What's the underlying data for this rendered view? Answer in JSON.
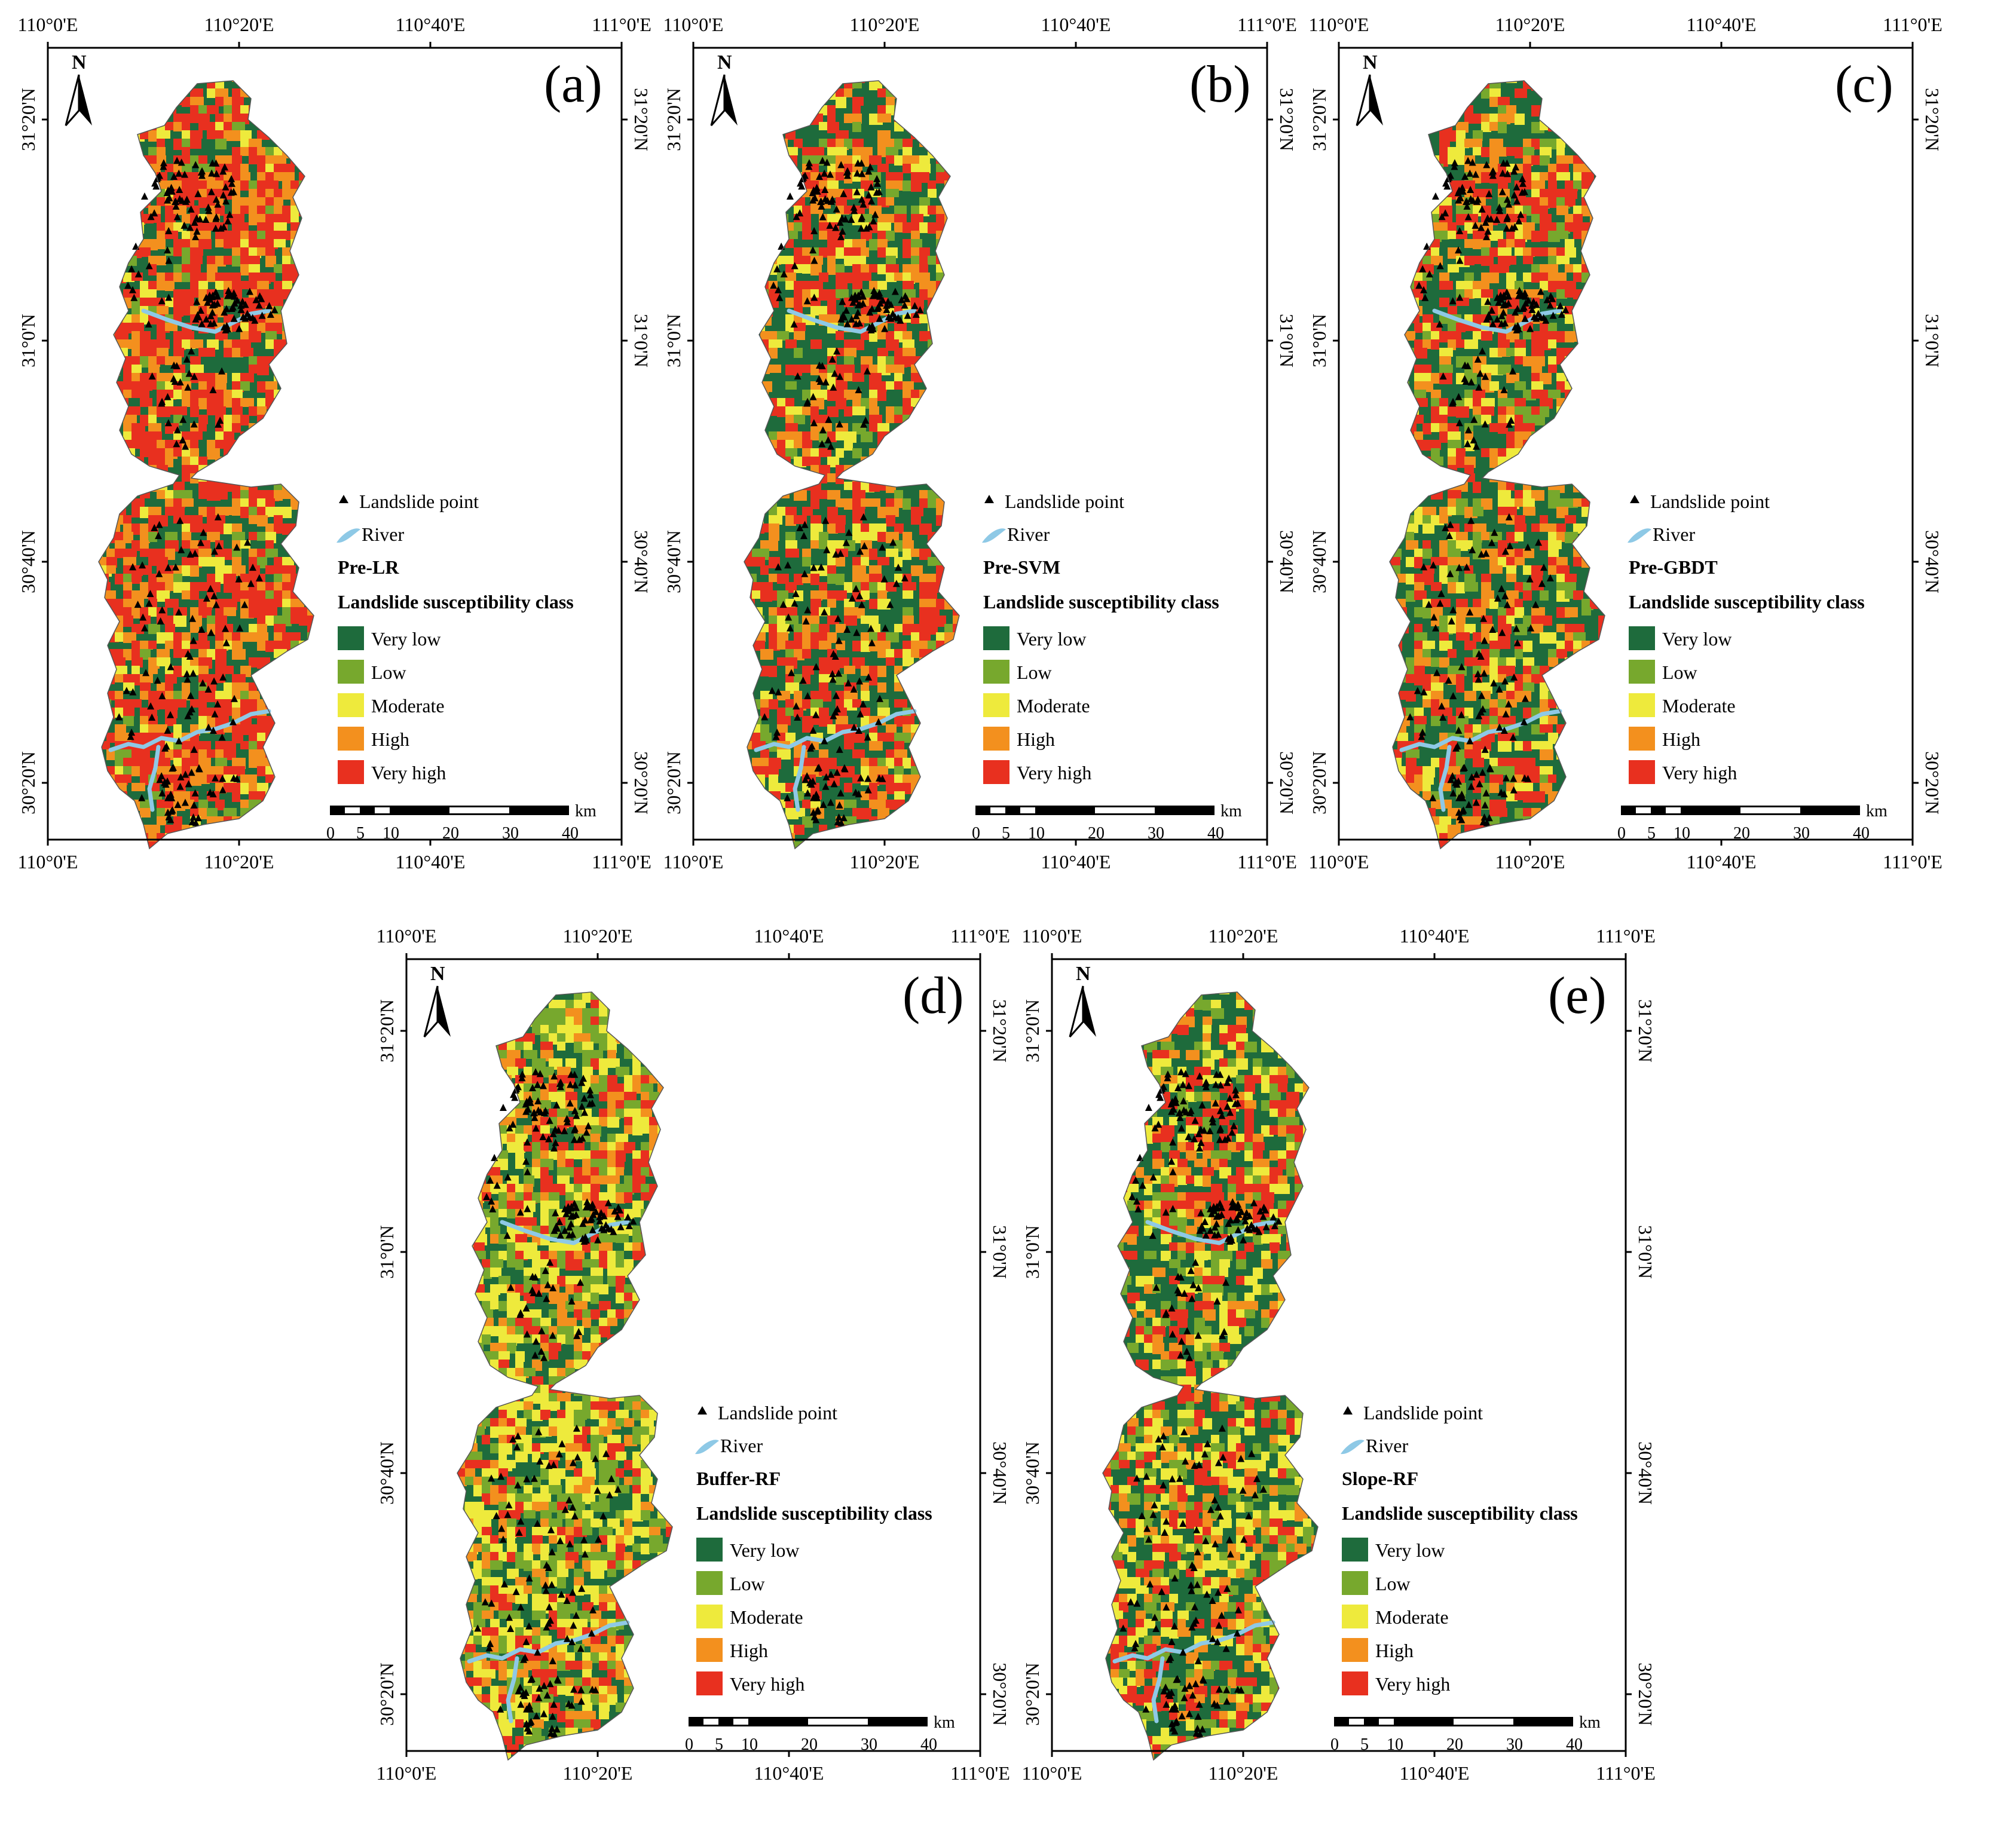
{
  "figure": {
    "legend_common": {
      "landslide_point": "Landslide point",
      "river": "River",
      "class_title": "Landslide susceptibility class",
      "classes": [
        "Very low",
        "Low",
        "Moderate",
        "High",
        "Very high"
      ]
    },
    "class_colors": [
      "#1e6b3c",
      "#77a82d",
      "#eeea3c",
      "#f3901e",
      "#e8301f"
    ],
    "river_color": "#8ec9e6",
    "lon_ticks": [
      "110°0'E",
      "110°20'E",
      "110°40'E",
      "111°0'E"
    ],
    "lat_ticks": [
      "31°20'N",
      "31°0'N",
      "30°40'N",
      "30°20'N"
    ],
    "north_label": "N",
    "scalebar": {
      "ticks": [
        "0",
        "5",
        "10",
        "20",
        "30",
        "40"
      ],
      "unit": "km"
    },
    "panels": [
      {
        "id": "a",
        "letter": "(a)",
        "model": "Pre-LR",
        "class_mix": [
          0.34,
          0.05,
          0.08,
          0.18,
          0.35
        ]
      },
      {
        "id": "b",
        "letter": "(b)",
        "model": "Pre-SVM",
        "class_mix": [
          0.46,
          0.07,
          0.1,
          0.15,
          0.22
        ]
      },
      {
        "id": "c",
        "letter": "(c)",
        "model": "Pre-GBDT",
        "class_mix": [
          0.48,
          0.1,
          0.1,
          0.14,
          0.18
        ]
      },
      {
        "id": "d",
        "letter": "(d)",
        "model": "Buffer-RF",
        "class_mix": [
          0.3,
          0.22,
          0.26,
          0.12,
          0.1
        ]
      },
      {
        "id": "e",
        "letter": "(e)",
        "model": "Slope-RF",
        "class_mix": [
          0.46,
          0.15,
          0.16,
          0.1,
          0.13
        ]
      }
    ]
  }
}
